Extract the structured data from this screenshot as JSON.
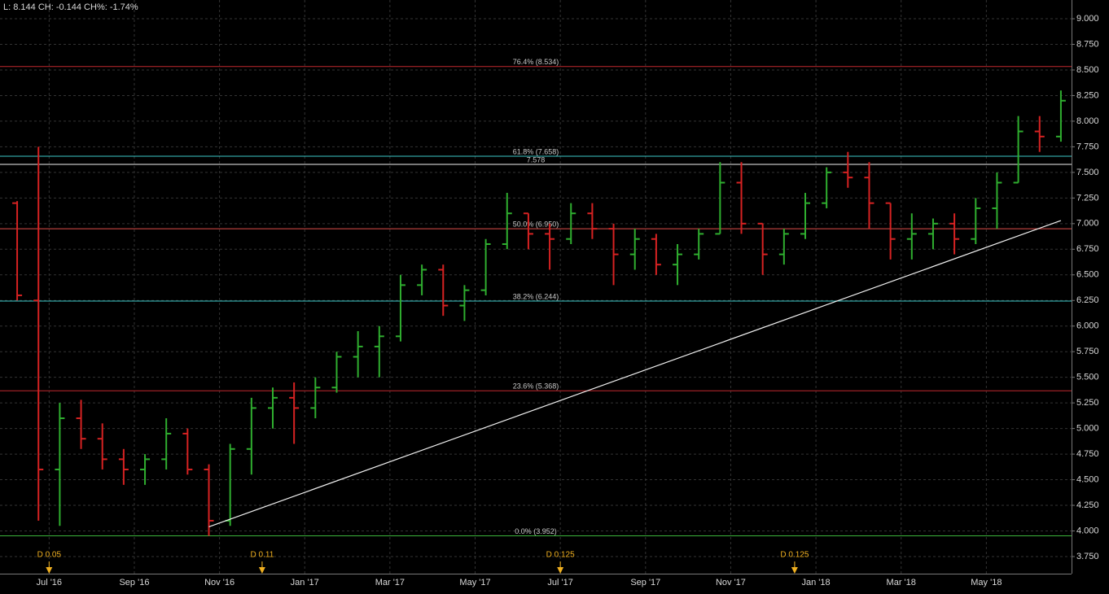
{
  "chart_data": {
    "type": "ohlc",
    "header": "L: 8.144 CH: -0.144 CH%: -1.74%",
    "categories": [
      null,
      null,
      "Jul '16",
      null,
      null,
      null,
      "Sep '16",
      null,
      null,
      null,
      "Nov '16",
      null,
      null,
      null,
      "Jan '17",
      null,
      null,
      null,
      "Mar '17",
      null,
      null,
      null,
      "May '17",
      null,
      null,
      null,
      "Jul '17",
      null,
      null,
      null,
      "Sep '17",
      null,
      null,
      null,
      "Nov '17",
      null,
      null,
      null,
      "Jan '18",
      null,
      null,
      null,
      "Mar '18",
      null,
      null,
      null,
      "May '18",
      null,
      null,
      null
    ],
    "open": [
      7.2,
      6.25,
      4.6,
      5.1,
      4.9,
      4.7,
      4.6,
      4.7,
      4.95,
      4.6,
      4.1,
      4.8,
      5.2,
      5.3,
      5.2,
      5.4,
      5.7,
      5.8,
      5.9,
      6.4,
      6.55,
      6.2,
      6.35,
      6.8,
      7.1,
      6.9,
      6.85,
      7.1,
      6.95,
      6.7,
      6.85,
      6.6,
      6.7,
      6.9,
      7.4,
      7.0,
      6.7,
      6.9,
      7.2,
      7.5,
      7.45,
      7.2,
      6.85,
      6.9,
      7.0,
      6.85,
      7.15,
      7.4,
      7.9,
      7.85
    ],
    "high": [
      7.22,
      7.75,
      5.25,
      5.28,
      5.05,
      4.8,
      4.75,
      5.1,
      5.0,
      4.65,
      4.85,
      5.3,
      5.4,
      5.45,
      5.5,
      5.75,
      5.95,
      6.0,
      6.5,
      6.6,
      6.6,
      6.4,
      6.85,
      7.3,
      7.1,
      7.0,
      7.2,
      7.2,
      7.0,
      6.95,
      6.9,
      6.8,
      6.95,
      7.6,
      7.6,
      7.0,
      6.95,
      7.3,
      7.55,
      7.7,
      7.6,
      7.2,
      7.1,
      7.05,
      7.1,
      7.25,
      7.5,
      8.05,
      8.05,
      8.3
    ],
    "low": [
      6.25,
      4.1,
      4.05,
      4.8,
      4.6,
      4.45,
      4.45,
      4.6,
      4.55,
      3.952,
      4.05,
      4.55,
      5.0,
      4.85,
      5.1,
      5.35,
      5.5,
      5.5,
      5.85,
      6.3,
      6.1,
      6.05,
      6.3,
      6.75,
      6.75,
      6.55,
      6.8,
      6.85,
      6.4,
      6.55,
      6.5,
      6.4,
      6.65,
      6.9,
      6.9,
      6.5,
      6.6,
      6.85,
      7.15,
      7.35,
      6.95,
      6.65,
      6.65,
      6.75,
      6.7,
      6.8,
      6.95,
      7.4,
      7.7,
      7.8
    ],
    "close": [
      6.3,
      4.6,
      5.1,
      4.9,
      4.7,
      4.6,
      4.7,
      4.95,
      4.6,
      4.1,
      4.8,
      5.2,
      5.3,
      5.2,
      5.4,
      5.7,
      5.8,
      5.9,
      6.4,
      6.55,
      6.2,
      6.35,
      6.8,
      7.1,
      6.9,
      6.85,
      7.1,
      6.95,
      6.7,
      6.85,
      6.6,
      6.7,
      6.9,
      7.4,
      7.0,
      6.7,
      6.9,
      7.2,
      7.5,
      7.45,
      7.2,
      6.85,
      6.9,
      7.0,
      6.85,
      7.15,
      7.4,
      7.9,
      7.85,
      8.2
    ],
    "up_color": "#2fae2f",
    "down_color": "#d62222",
    "ylim": [
      3.583,
      9.183
    ],
    "yticks": [
      {
        "value": 3.75,
        "label": "3.750"
      },
      {
        "value": 4,
        "label": "4.000"
      },
      {
        "value": 4.25,
        "label": "4.250"
      },
      {
        "value": 4.5,
        "label": "4.500"
      },
      {
        "value": 4.75,
        "label": "4.750"
      },
      {
        "value": 5,
        "label": "5.000"
      },
      {
        "value": 5.25,
        "label": "5.250"
      },
      {
        "value": 5.5,
        "label": "5.500"
      },
      {
        "value": 5.75,
        "label": "5.750"
      },
      {
        "value": 6,
        "label": "6.000"
      },
      {
        "value": 6.25,
        "label": "6.250"
      },
      {
        "value": 6.5,
        "label": "6.500"
      },
      {
        "value": 6.75,
        "label": "6.750"
      },
      {
        "value": 7,
        "label": "7.000"
      },
      {
        "value": 7.25,
        "label": "7.250"
      },
      {
        "value": 7.5,
        "label": "7.500"
      },
      {
        "value": 7.75,
        "label": "7.750"
      },
      {
        "value": 8,
        "label": "8.000"
      },
      {
        "value": 8.25,
        "label": "8.250"
      },
      {
        "value": 8.5,
        "label": "8.500"
      },
      {
        "value": 8.75,
        "label": "8.750"
      },
      {
        "value": 9,
        "label": "9.000"
      }
    ],
    "grid": true,
    "levels": [
      {
        "label": "76.4% (8.534)",
        "value": 8.534,
        "color": "#c0282e"
      },
      {
        "label": "61.8% (7.658)",
        "value": 7.658,
        "color": "#3cc8c8"
      },
      {
        "label": "7.578",
        "value": 7.578,
        "color": "#f0f0f0"
      },
      {
        "label": "50.0% (6.950)",
        "value": 6.95,
        "color": "#e0504a"
      },
      {
        "label": "38.2% (6.244)",
        "value": 6.244,
        "color": "#3cc8c8"
      },
      {
        "label": "23.6% (5.368)",
        "value": 5.368,
        "color": "#c0282e"
      },
      {
        "label": "0.0% (3.952)",
        "value": 3.952,
        "color": "#3cb43c"
      }
    ],
    "trendline": {
      "start_index": 9,
      "start_value": 4.04,
      "end_index": 49,
      "end_value": 7.03,
      "color": "#f0f0f0"
    },
    "dividends": [
      {
        "label": "D 0.05",
        "value": 0.05,
        "index": 2
      },
      {
        "label": "D 0.11",
        "value": 0.11,
        "index": 12
      },
      {
        "label": "D 0.125",
        "value": 0.125,
        "index": 26
      },
      {
        "label": "D 0.125",
        "value": 0.125,
        "index": 37
      }
    ]
  }
}
